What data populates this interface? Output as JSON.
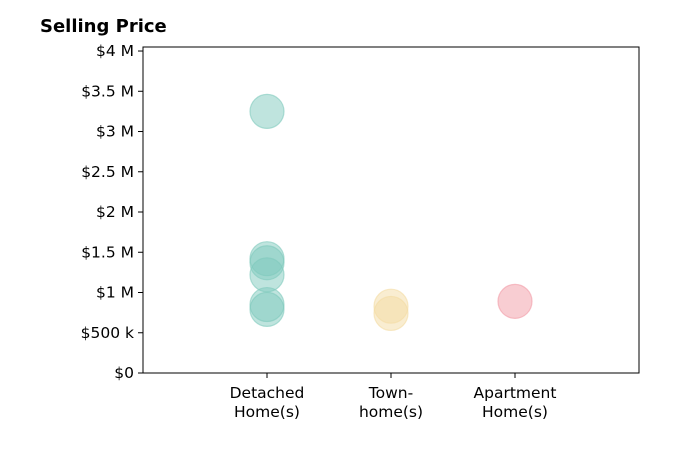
{
  "chart_data": {
    "type": "scatter",
    "title": "Selling Price",
    "xlabel": "",
    "ylabel": "",
    "categories": [
      {
        "lines": [
          "Detached",
          "Home(s)"
        ],
        "color": "#7fc9bd"
      },
      {
        "lines": [
          "Town-",
          "home(s)"
        ],
        "color": "#f3dca3"
      },
      {
        "lines": [
          "Apartment",
          "Home(s)"
        ],
        "color": "#f29ba6"
      }
    ],
    "ylim": [
      0,
      4050000
    ],
    "yticks": [
      {
        "value": 0,
        "label": "$0"
      },
      {
        "value": 500000,
        "label": "$500 k"
      },
      {
        "value": 1000000,
        "label": "$1 M"
      },
      {
        "value": 1500000,
        "label": "$1.5 M"
      },
      {
        "value": 2000000,
        "label": "$2 M"
      },
      {
        "value": 2500000,
        "label": "$2.5 M"
      },
      {
        "value": 3000000,
        "label": "$3 M"
      },
      {
        "value": 3500000,
        "label": "$3.5 M"
      },
      {
        "value": 4000000,
        "label": "$4 M"
      }
    ],
    "series": [
      {
        "values": [
          3250000,
          1420000,
          1370000,
          1220000,
          850000,
          790000
        ]
      },
      {
        "values": [
          830000,
          740000
        ]
      },
      {
        "values": [
          890000
        ]
      }
    ],
    "grid": false,
    "legend": "none"
  }
}
